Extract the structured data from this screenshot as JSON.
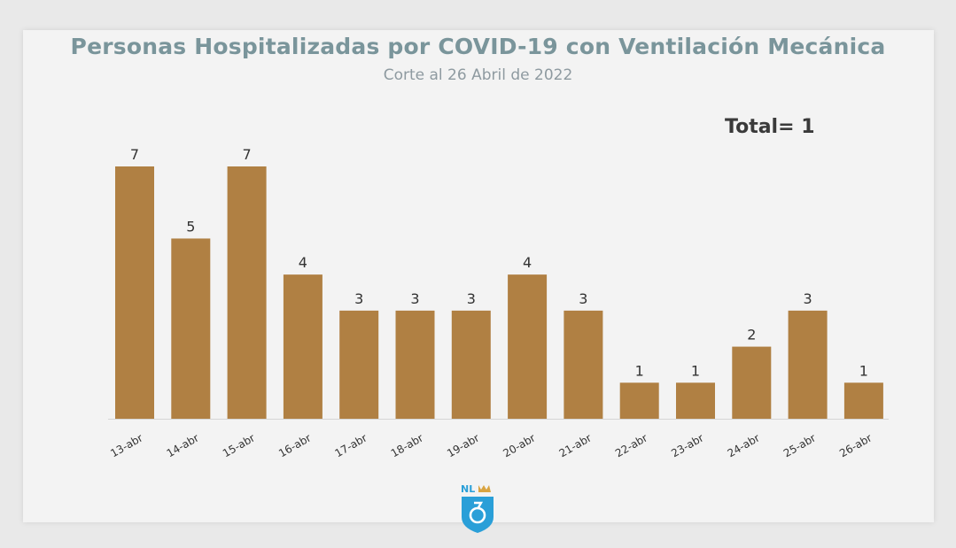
{
  "chart_data": {
    "type": "bar",
    "title": "Personas Hospitalizadas por COVID-19 con Ventilación Mecánica",
    "subtitle": "Corte al 26 Abril de 2022",
    "annotation": "Total= 1",
    "categories": [
      "13-abr",
      "14-abr",
      "15-abr",
      "16-abr",
      "17-abr",
      "18-abr",
      "19-abr",
      "20-abr",
      "21-abr",
      "22-abr",
      "23-abr",
      "24-abr",
      "25-abr",
      "26-abr"
    ],
    "values": [
      7,
      5,
      7,
      4,
      3,
      3,
      3,
      4,
      3,
      1,
      1,
      2,
      3,
      1
    ],
    "xlabel": "",
    "ylabel": "",
    "ylim": [
      0,
      7
    ],
    "grid": false,
    "bar_color": "#b08043",
    "data_labels": true
  },
  "logo": {
    "text": "NL",
    "accent": "#d9a441",
    "shield_color": "#2a9fd8"
  }
}
